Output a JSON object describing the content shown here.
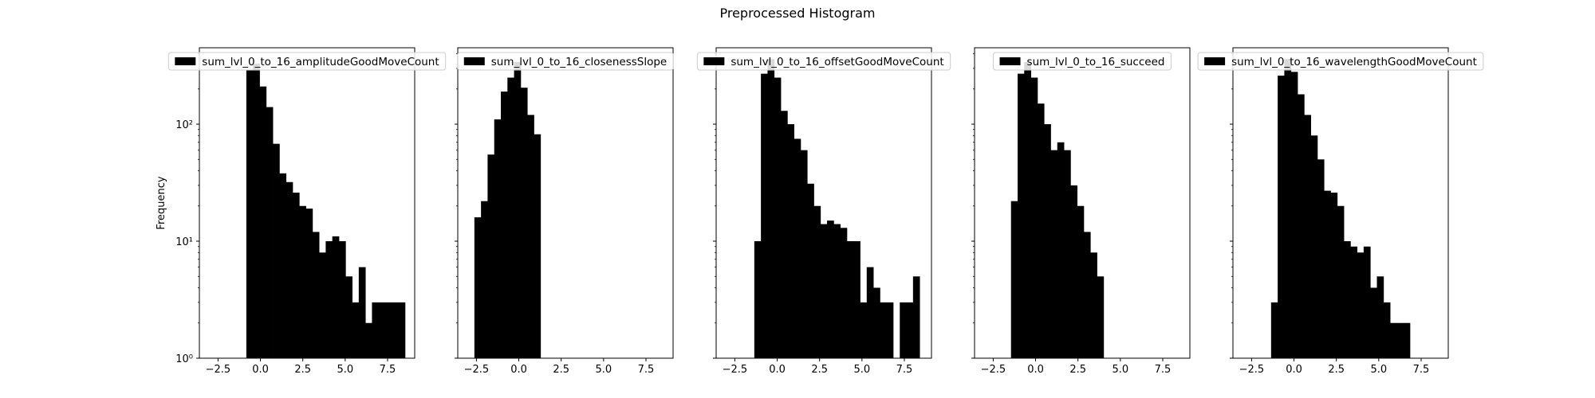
{
  "figure": {
    "title": "Preprocessed Histogram",
    "ylabel": "Frequency",
    "background": "#ffffff",
    "bar_color": "#000000"
  },
  "chart_data": [
    {
      "type": "histogram",
      "series": [
        {
          "name": "sum_lvl_0_to_16_amplitudeGoodMoveCount"
        }
      ],
      "x_ticks": [
        -2.5,
        0.0,
        2.5,
        5.0,
        7.5
      ],
      "x_tick_labels": [
        "−2.5",
        "0.0",
        "2.5",
        "5.0",
        "7.5"
      ],
      "xlim": [
        -3.6,
        9.1
      ],
      "yscale": "log",
      "ylim": [
        1,
        450
      ],
      "y_ticks": [
        1,
        10,
        100
      ],
      "y_tick_labels": [
        "10⁰",
        "10¹",
        "10²"
      ],
      "legend_loc": "upper center",
      "bins": [
        {
          "x0": -0.83,
          "x1": -0.44,
          "count": 290
        },
        {
          "x0": -0.44,
          "x1": -0.05,
          "count": 330
        },
        {
          "x0": -0.05,
          "x1": 0.34,
          "count": 210
        },
        {
          "x0": 0.34,
          "x1": 0.73,
          "count": 140
        },
        {
          "x0": 0.73,
          "x1": 1.12,
          "count": 68
        },
        {
          "x0": 1.12,
          "x1": 1.51,
          "count": 38
        },
        {
          "x0": 1.51,
          "x1": 1.9,
          "count": 32
        },
        {
          "x0": 1.9,
          "x1": 2.29,
          "count": 26
        },
        {
          "x0": 2.29,
          "x1": 2.68,
          "count": 20
        },
        {
          "x0": 2.68,
          "x1": 3.07,
          "count": 19
        },
        {
          "x0": 3.07,
          "x1": 3.46,
          "count": 12
        },
        {
          "x0": 3.46,
          "x1": 3.85,
          "count": 8
        },
        {
          "x0": 3.85,
          "x1": 4.24,
          "count": 10
        },
        {
          "x0": 4.24,
          "x1": 4.63,
          "count": 11
        },
        {
          "x0": 4.63,
          "x1": 5.02,
          "count": 10
        },
        {
          "x0": 5.02,
          "x1": 5.41,
          "count": 5
        },
        {
          "x0": 5.41,
          "x1": 5.8,
          "count": 3
        },
        {
          "x0": 5.8,
          "x1": 6.19,
          "count": 6
        },
        {
          "x0": 6.19,
          "x1": 6.58,
          "count": 2
        },
        {
          "x0": 6.58,
          "x1": 6.97,
          "count": 3
        },
        {
          "x0": 6.97,
          "x1": 7.36,
          "count": 3
        },
        {
          "x0": 7.36,
          "x1": 7.75,
          "count": 3
        },
        {
          "x0": 7.75,
          "x1": 8.14,
          "count": 3
        },
        {
          "x0": 8.14,
          "x1": 8.53,
          "count": 3
        }
      ]
    },
    {
      "type": "histogram",
      "series": [
        {
          "name": "sum_lvl_0_to_16_closenessSlope"
        }
      ],
      "x_ticks": [
        -2.5,
        0.0,
        2.5,
        5.0,
        7.5
      ],
      "x_tick_labels": [
        "−2.5",
        "0.0",
        "2.5",
        "5.0",
        "7.5"
      ],
      "xlim": [
        -3.6,
        9.1
      ],
      "yscale": "log",
      "ylim": [
        1,
        450
      ],
      "legend_loc": "upper center",
      "bins": [
        {
          "x0": -2.62,
          "x1": -2.23,
          "count": 16
        },
        {
          "x0": -2.23,
          "x1": -1.84,
          "count": 22
        },
        {
          "x0": -1.84,
          "x1": -1.45,
          "count": 55
        },
        {
          "x0": -1.45,
          "x1": -1.06,
          "count": 110
        },
        {
          "x0": -1.06,
          "x1": -0.67,
          "count": 190
        },
        {
          "x0": -0.67,
          "x1": -0.28,
          "count": 250
        },
        {
          "x0": -0.28,
          "x1": 0.11,
          "count": 340
        },
        {
          "x0": 0.11,
          "x1": 0.5,
          "count": 205
        },
        {
          "x0": 0.5,
          "x1": 0.89,
          "count": 120
        },
        {
          "x0": 0.89,
          "x1": 1.28,
          "count": 82
        }
      ]
    },
    {
      "type": "histogram",
      "series": [
        {
          "name": "sum_lvl_0_to_16_offsetGoodMoveCount"
        }
      ],
      "x_ticks": [
        -2.5,
        0.0,
        2.5,
        5.0,
        7.5
      ],
      "x_tick_labels": [
        "−2.5",
        "0.0",
        "2.5",
        "5.0",
        "7.5"
      ],
      "xlim": [
        -3.6,
        9.1
      ],
      "yscale": "log",
      "ylim": [
        1,
        450
      ],
      "legend_loc": "upper center",
      "bins": [
        {
          "x0": -1.35,
          "x1": -0.96,
          "count": 10
        },
        {
          "x0": -0.96,
          "x1": -0.57,
          "count": 270
        },
        {
          "x0": -0.57,
          "x1": -0.18,
          "count": 360
        },
        {
          "x0": -0.18,
          "x1": 0.21,
          "count": 250
        },
        {
          "x0": 0.21,
          "x1": 0.6,
          "count": 130
        },
        {
          "x0": 0.6,
          "x1": 0.99,
          "count": 100
        },
        {
          "x0": 0.99,
          "x1": 1.38,
          "count": 75
        },
        {
          "x0": 1.38,
          "x1": 1.77,
          "count": 60
        },
        {
          "x0": 1.77,
          "x1": 2.16,
          "count": 31
        },
        {
          "x0": 2.16,
          "x1": 2.55,
          "count": 20
        },
        {
          "x0": 2.55,
          "x1": 2.94,
          "count": 14
        },
        {
          "x0": 2.94,
          "x1": 3.33,
          "count": 15
        },
        {
          "x0": 3.33,
          "x1": 3.72,
          "count": 14
        },
        {
          "x0": 3.72,
          "x1": 4.11,
          "count": 13
        },
        {
          "x0": 4.11,
          "x1": 4.5,
          "count": 10
        },
        {
          "x0": 4.5,
          "x1": 4.89,
          "count": 10
        },
        {
          "x0": 4.89,
          "x1": 5.28,
          "count": 3
        },
        {
          "x0": 5.28,
          "x1": 5.67,
          "count": 6
        },
        {
          "x0": 5.67,
          "x1": 6.06,
          "count": 4
        },
        {
          "x0": 6.06,
          "x1": 6.45,
          "count": 3
        },
        {
          "x0": 6.45,
          "x1": 6.84,
          "count": 3
        },
        {
          "x0": 7.23,
          "x1": 7.62,
          "count": 3
        },
        {
          "x0": 7.62,
          "x1": 8.01,
          "count": 3
        },
        {
          "x0": 8.01,
          "x1": 8.4,
          "count": 5
        }
      ]
    },
    {
      "type": "histogram",
      "series": [
        {
          "name": "sum_lvl_0_to_16_succeed"
        }
      ],
      "x_ticks": [
        -2.5,
        0.0,
        2.5,
        5.0,
        7.5
      ],
      "x_tick_labels": [
        "−2.5",
        "0.0",
        "2.5",
        "5.0",
        "7.5"
      ],
      "xlim": [
        -3.6,
        9.1
      ],
      "yscale": "log",
      "ylim": [
        1,
        450
      ],
      "legend_loc": "upper center",
      "bins": [
        {
          "x0": -1.45,
          "x1": -1.06,
          "count": 22
        },
        {
          "x0": -1.06,
          "x1": -0.67,
          "count": 270
        },
        {
          "x0": -0.67,
          "x1": -0.28,
          "count": 340
        },
        {
          "x0": -0.28,
          "x1": 0.11,
          "count": 250
        },
        {
          "x0": 0.11,
          "x1": 0.5,
          "count": 150
        },
        {
          "x0": 0.5,
          "x1": 0.89,
          "count": 100
        },
        {
          "x0": 0.89,
          "x1": 1.28,
          "count": 60
        },
        {
          "x0": 1.28,
          "x1": 1.67,
          "count": 70
        },
        {
          "x0": 1.67,
          "x1": 2.06,
          "count": 60
        },
        {
          "x0": 2.06,
          "x1": 2.45,
          "count": 30
        },
        {
          "x0": 2.45,
          "x1": 2.84,
          "count": 20
        },
        {
          "x0": 2.84,
          "x1": 3.23,
          "count": 12
        },
        {
          "x0": 3.23,
          "x1": 3.62,
          "count": 8
        },
        {
          "x0": 3.62,
          "x1": 4.01,
          "count": 5
        }
      ]
    },
    {
      "type": "histogram",
      "series": [
        {
          "name": "sum_lvl_0_to_16_wavelengthGoodMoveCount"
        }
      ],
      "x_ticks": [
        -2.5,
        0.0,
        2.5,
        5.0,
        7.5
      ],
      "x_tick_labels": [
        "−2.5",
        "0.0",
        "2.5",
        "5.0",
        "7.5"
      ],
      "xlim": [
        -3.6,
        9.1
      ],
      "yscale": "log",
      "ylim": [
        1,
        450
      ],
      "legend_loc": "upper center",
      "bins": [
        {
          "x0": -1.35,
          "x1": -0.96,
          "count": 3
        },
        {
          "x0": -0.96,
          "x1": -0.57,
          "count": 260
        },
        {
          "x0": -0.57,
          "x1": -0.18,
          "count": 360
        },
        {
          "x0": -0.18,
          "x1": 0.21,
          "count": 280
        },
        {
          "x0": 0.21,
          "x1": 0.6,
          "count": 180
        },
        {
          "x0": 0.6,
          "x1": 0.99,
          "count": 120
        },
        {
          "x0": 0.99,
          "x1": 1.38,
          "count": 80
        },
        {
          "x0": 1.38,
          "x1": 1.77,
          "count": 50
        },
        {
          "x0": 1.77,
          "x1": 2.16,
          "count": 27
        },
        {
          "x0": 2.16,
          "x1": 2.55,
          "count": 26
        },
        {
          "x0": 2.55,
          "x1": 2.94,
          "count": 20
        },
        {
          "x0": 2.94,
          "x1": 3.33,
          "count": 10
        },
        {
          "x0": 3.33,
          "x1": 3.72,
          "count": 9
        },
        {
          "x0": 3.72,
          "x1": 4.11,
          "count": 8
        },
        {
          "x0": 4.11,
          "x1": 4.5,
          "count": 9
        },
        {
          "x0": 4.5,
          "x1": 4.89,
          "count": 4
        },
        {
          "x0": 4.89,
          "x1": 5.28,
          "count": 5
        },
        {
          "x0": 5.28,
          "x1": 5.67,
          "count": 3
        },
        {
          "x0": 5.67,
          "x1": 6.06,
          "count": 2
        },
        {
          "x0": 6.06,
          "x1": 6.45,
          "count": 2
        },
        {
          "x0": 6.45,
          "x1": 6.84,
          "count": 2
        }
      ]
    }
  ]
}
